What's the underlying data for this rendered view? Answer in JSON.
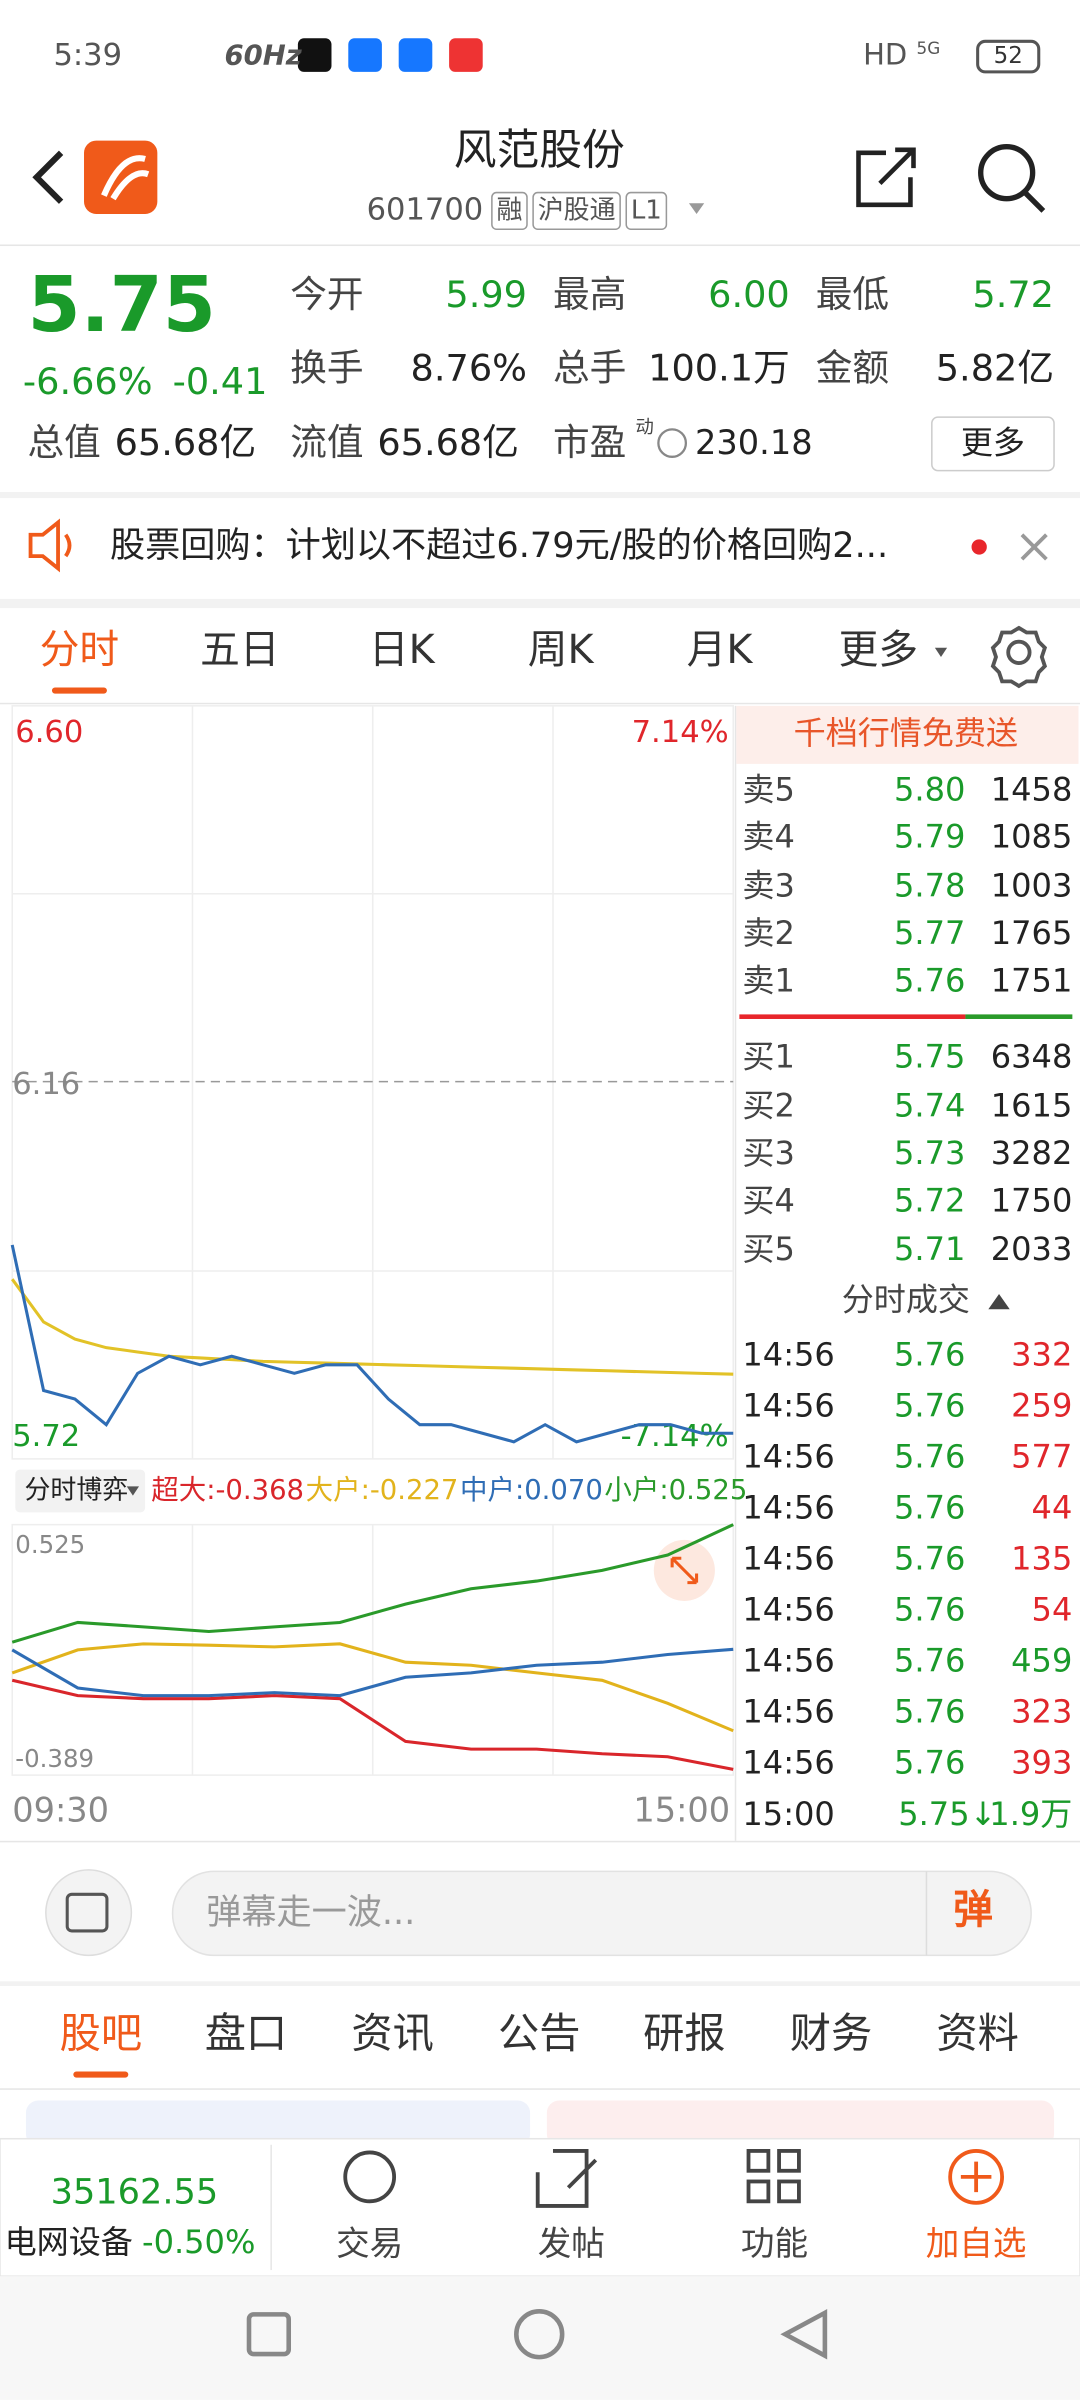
{
  "status_bar": {
    "time": "5:39",
    "refresh": "60Hz",
    "network": "HD",
    "signal": "5G",
    "battery": "52"
  },
  "header": {
    "title": "风范股份",
    "code": "601700",
    "tags": [
      "融",
      "沪股通",
      "L1"
    ]
  },
  "quote": {
    "price": "5.75",
    "change_pct": "-6.66%",
    "change": "-0.41",
    "more": "更多",
    "stats": [
      {
        "label": "今开",
        "value": "5.99",
        "tone": "down"
      },
      {
        "label": "最高",
        "value": "6.00",
        "tone": "down"
      },
      {
        "label": "最低",
        "value": "5.72",
        "tone": "down"
      },
      {
        "label": "换手",
        "value": "8.76%",
        "tone": "plain"
      },
      {
        "label": "总手",
        "value": "100.1万",
        "tone": "plain"
      },
      {
        "label": "金额",
        "value": "5.82亿",
        "tone": "plain"
      },
      {
        "label": "总值",
        "value": "65.68亿",
        "tone": "plain"
      },
      {
        "label": "流值",
        "value": "65.68亿",
        "tone": "plain"
      },
      {
        "label": "市盈",
        "superscript": "动",
        "value": "230.18",
        "tone": "plain"
      }
    ]
  },
  "notice": {
    "text": "股票回购：计划以不超过6.79元/股的价格回购2..."
  },
  "tabs": {
    "items": [
      "分时",
      "五日",
      "日K",
      "周K",
      "月K",
      "更多"
    ],
    "active": 0
  },
  "intraday": {
    "price_axis": {
      "top": {
        "value": 6.6,
        "label": "6.60"
      },
      "mid": {
        "value": 6.16,
        "label": "6.16"
      },
      "bottom": {
        "value": 5.72,
        "label": "5.72"
      },
      "top_pct": "7.14%",
      "bottom_pct": "-7.14%"
    },
    "time_labels": [
      "09:30",
      "15:00"
    ],
    "price_color": "#2f6db5",
    "average_color": "#e2c227",
    "price": [
      5.97,
      5.8,
      5.79,
      5.76,
      5.82,
      5.84,
      5.83,
      5.84,
      5.83,
      5.82,
      5.83,
      5.83,
      5.79,
      5.76,
      5.76,
      5.75,
      5.74,
      5.76,
      5.74,
      5.75,
      5.76,
      5.76,
      5.75,
      5.75
    ],
    "average": [
      5.93,
      5.88,
      5.86,
      5.85,
      5.845,
      5.84,
      5.838,
      5.836,
      5.834,
      5.833,
      5.832,
      5.831,
      5.83,
      5.829,
      5.828,
      5.827,
      5.826,
      5.825,
      5.824,
      5.823,
      5.822,
      5.821,
      5.82,
      5.819
    ]
  },
  "flow": {
    "selector": "分时博弈",
    "ylim": [
      -0.389,
      0.525
    ],
    "series": [
      {
        "label": "超大:-0.368",
        "color": "#d9262b",
        "values": [
          -0.043,
          -0.099,
          -0.11,
          -0.11,
          -0.099,
          -0.11,
          -0.266,
          -0.294,
          -0.294,
          -0.311,
          -0.322,
          -0.368
        ]
      },
      {
        "label": "大户:-0.227",
        "color": "#e2b31c",
        "values": [
          -0.016,
          0.068,
          0.09,
          0.085,
          0.079,
          0.09,
          0.023,
          0.012,
          -0.016,
          -0.043,
          -0.127,
          -0.227
        ]
      },
      {
        "label": "中户:0.070",
        "color": "#2f6db5",
        "values": [
          0.068,
          -0.071,
          -0.099,
          -0.099,
          -0.088,
          -0.099,
          -0.032,
          -0.016,
          0.012,
          0.023,
          0.051,
          0.07
        ]
      },
      {
        "label": "小户:0.525",
        "color": "#2a9a2a",
        "values": [
          0.096,
          0.168,
          0.152,
          0.135,
          0.152,
          0.168,
          0.235,
          0.291,
          0.319,
          0.358,
          0.414,
          0.525
        ]
      }
    ]
  },
  "order_book": {
    "promo": "千档行情免费送",
    "asks": [
      {
        "label": "卖5",
        "price": "5.80",
        "volume": "1458"
      },
      {
        "label": "卖4",
        "price": "5.79",
        "volume": "1085"
      },
      {
        "label": "卖3",
        "price": "5.78",
        "volume": "1003"
      },
      {
        "label": "卖2",
        "price": "5.77",
        "volume": "1765"
      },
      {
        "label": "卖1",
        "price": "5.76",
        "volume": "1751"
      }
    ],
    "bids": [
      {
        "label": "买1",
        "price": "5.75",
        "volume": "6348"
      },
      {
        "label": "买2",
        "price": "5.74",
        "volume": "1615"
      },
      {
        "label": "买3",
        "price": "5.73",
        "volume": "3282"
      },
      {
        "label": "买4",
        "price": "5.72",
        "volume": "1750"
      },
      {
        "label": "买5",
        "price": "5.71",
        "volume": "2033"
      }
    ]
  },
  "trades": {
    "title": "分时成交",
    "rows": [
      {
        "time": "14:56",
        "price": "5.76",
        "volume": "332",
        "side": "buy"
      },
      {
        "time": "14:56",
        "price": "5.76",
        "volume": "259",
        "side": "buy"
      },
      {
        "time": "14:56",
        "price": "5.76",
        "volume": "577",
        "side": "buy"
      },
      {
        "time": "14:56",
        "price": "5.76",
        "volume": "44",
        "side": "buy"
      },
      {
        "time": "14:56",
        "price": "5.76",
        "volume": "135",
        "side": "buy"
      },
      {
        "time": "14:56",
        "price": "5.76",
        "volume": "54",
        "side": "buy"
      },
      {
        "time": "14:56",
        "price": "5.76",
        "volume": "459",
        "side": "sell"
      },
      {
        "time": "14:56",
        "price": "5.76",
        "volume": "323",
        "side": "buy"
      },
      {
        "time": "14:56",
        "price": "5.76",
        "volume": "393",
        "side": "buy"
      },
      {
        "time": "15:00",
        "price": "5.75↓",
        "volume": "1.9万",
        "side": "sell"
      }
    ]
  },
  "comment": {
    "placeholder": "弹幕走一波...",
    "button": "弹"
  },
  "section_tabs": {
    "items": [
      "股吧",
      "盘口",
      "资讯",
      "公告",
      "研报",
      "财务",
      "资料"
    ],
    "active": 0
  },
  "bottom_bar": {
    "index_value": "35162.55",
    "sector": "电网设备",
    "sector_change": "-0.50%",
    "actions": [
      "交易",
      "发帖",
      "功能",
      "加自选"
    ]
  }
}
